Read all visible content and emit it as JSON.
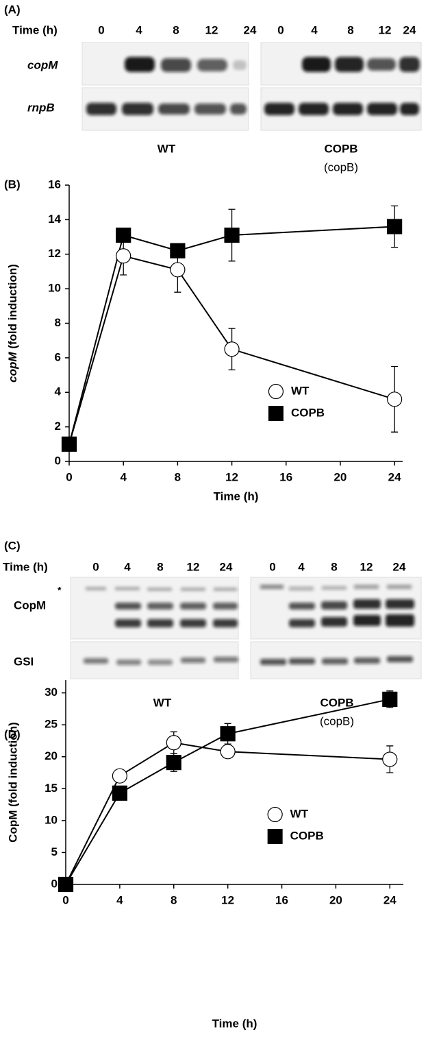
{
  "panel_a": {
    "label": "(A)",
    "time_label": "Time (h)",
    "lanes": [
      0,
      4,
      8,
      12,
      24
    ],
    "rows": [
      "copM",
      "rnpB"
    ],
    "strains": [
      "WT",
      "COPB"
    ],
    "strain_note": "(copB)"
  },
  "panel_c": {
    "label": "(C)",
    "time_label": "Time (h)",
    "lanes": [
      0,
      4,
      8,
      12,
      24
    ],
    "rows": [
      "CopM",
      "GSI"
    ],
    "marker": "*",
    "strains": [
      "WT",
      "COPB"
    ],
    "strain_note": "(copB)"
  },
  "chart_data": [
    {
      "type": "line",
      "label": "(B)",
      "x_label": "Time (h)",
      "y_label": "copM (fold induction)",
      "x": [
        0,
        4,
        8,
        12,
        24
      ],
      "xlim": [
        0,
        24.6
      ],
      "xticks": [
        0,
        4,
        8,
        12,
        16,
        20,
        24
      ],
      "ylim": [
        0,
        16
      ],
      "yticks": [
        0,
        2,
        4,
        6,
        8,
        10,
        12,
        14,
        16
      ],
      "legend": "lower right",
      "series": [
        {
          "name": "WT",
          "color": "#ffffff",
          "marker": "circle",
          "values": [
            1,
            11.9,
            11.1,
            6.5,
            3.6
          ],
          "errors": [
            0.1,
            1.1,
            1.3,
            1.2,
            1.9
          ]
        },
        {
          "name": "COPB",
          "color": "#000000",
          "marker": "square",
          "values": [
            1,
            13.1,
            12.2,
            13.1,
            13.6
          ],
          "errors": [
            0.1,
            0.2,
            0.3,
            1.5,
            1.2
          ]
        }
      ]
    },
    {
      "type": "line",
      "label": "(D)",
      "x_label": "Time (h)",
      "y_label": "CopM (fold induction)",
      "x": [
        0,
        4,
        8,
        12,
        24
      ],
      "xlim": [
        0,
        25
      ],
      "xticks": [
        0,
        4,
        8,
        12,
        16,
        20,
        24
      ],
      "ylim": [
        0,
        32
      ],
      "yticks": [
        0,
        5,
        10,
        15,
        20,
        25,
        30
      ],
      "legend": "lower right",
      "series": [
        {
          "name": "WT",
          "color": "#ffffff",
          "marker": "circle",
          "values": [
            0,
            17,
            22.2,
            20.8,
            19.6
          ],
          "errors": [
            0.1,
            0.3,
            1.7,
            0.3,
            2.1
          ]
        },
        {
          "name": "COPB",
          "color": "#000000",
          "marker": "square",
          "values": [
            0,
            14.3,
            19.1,
            23.6,
            29.0
          ],
          "errors": [
            0.1,
            0.3,
            1.4,
            1.6,
            1.3
          ]
        }
      ]
    }
  ]
}
